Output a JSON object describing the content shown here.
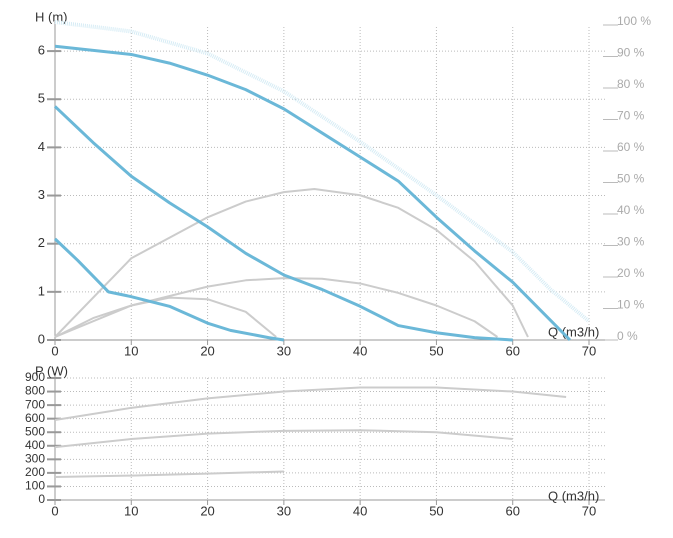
{
  "chart_data": [
    {
      "type": "line",
      "y_label": "H (m)",
      "x_label": "Q (m3/h)",
      "xlim": [
        0,
        70
      ],
      "xticks": [
        0,
        10,
        20,
        30,
        40,
        50,
        60,
        70
      ],
      "ylim": [
        0,
        6.5
      ],
      "yticks": [
        0,
        1,
        2,
        3,
        4,
        5,
        6
      ],
      "y2lim": [
        0,
        100
      ],
      "y2ticks": [
        {
          "value": 0,
          "label": "0 %"
        },
        {
          "value": 10,
          "label": "10 %"
        },
        {
          "value": 20,
          "label": "20 %"
        },
        {
          "value": 30,
          "label": "30 %"
        },
        {
          "value": 40,
          "label": "40 %"
        },
        {
          "value": 50,
          "label": "50 %"
        },
        {
          "value": 60,
          "label": "60 %"
        },
        {
          "value": 70,
          "label": "70 %"
        },
        {
          "value": 80,
          "label": "80 %"
        },
        {
          "value": 90,
          "label": "90 %"
        },
        {
          "value": 100,
          "label": "100 %"
        }
      ],
      "grid": true,
      "series": [
        {
          "color": "#d6ecf5",
          "dash": "dotted",
          "axis": "y2",
          "x": [
            0,
            10,
            20,
            30,
            40,
            50,
            60,
            65,
            70
          ],
          "values": [
            100,
            97,
            90,
            78,
            62,
            45,
            27,
            15,
            5
          ]
        },
        {
          "color": "#cccccc",
          "axis": "y2",
          "x": [
            0,
            10,
            20,
            25,
            30,
            34,
            40,
            45,
            50,
            55,
            60,
            62
          ],
          "values": [
            0,
            25,
            38,
            43,
            46,
            47,
            45,
            41,
            34,
            24,
            10,
            0
          ]
        },
        {
          "color": "#cccccc",
          "axis": "y2",
          "x": [
            0,
            10,
            20,
            25,
            30,
            35,
            40,
            45,
            50,
            55,
            58
          ],
          "values": [
            0,
            10,
            16,
            18,
            18.7,
            18.5,
            17,
            14,
            10,
            5,
            0
          ]
        },
        {
          "color": "#cccccc",
          "axis": "y2",
          "x": [
            0,
            5,
            10,
            15,
            20,
            25,
            29
          ],
          "values": [
            0,
            6,
            10,
            12.5,
            12,
            8,
            0
          ]
        },
        {
          "color": "#6bb8d8",
          "x": [
            0,
            10,
            15,
            20,
            25,
            30,
            35,
            40,
            45,
            50,
            55,
            60,
            65,
            67.5
          ],
          "values": [
            6.1,
            5.93,
            5.75,
            5.5,
            5.2,
            4.8,
            4.3,
            3.8,
            3.3,
            2.55,
            1.85,
            1.2,
            0.4,
            0
          ]
        },
        {
          "color": "#6bb8d8",
          "x": [
            0,
            5,
            10,
            15,
            20,
            25,
            30,
            35,
            40,
            45,
            50,
            55,
            60
          ],
          "values": [
            4.85,
            4.1,
            3.4,
            2.85,
            2.35,
            1.8,
            1.35,
            1.05,
            0.7,
            0.3,
            0.15,
            0.05,
            0
          ]
        },
        {
          "color": "#6bb8d8",
          "x": [
            0,
            3,
            7,
            10,
            15,
            20,
            23,
            28,
            30
          ],
          "values": [
            2.1,
            1.65,
            1.0,
            0.9,
            0.7,
            0.35,
            0.2,
            0.05,
            0
          ]
        }
      ]
    },
    {
      "type": "line",
      "y_label": "P (W)",
      "x_label": "Q (m3/h)",
      "xlim": [
        0,
        70
      ],
      "xticks": [
        0,
        10,
        20,
        30,
        40,
        50,
        60,
        70
      ],
      "ylim": [
        0,
        900
      ],
      "yticks": [
        0,
        100,
        200,
        300,
        400,
        500,
        600,
        700,
        800,
        900
      ],
      "grid": true,
      "series": [
        {
          "color": "#cccccc",
          "x": [
            0,
            10,
            20,
            30,
            40,
            50,
            60,
            67
          ],
          "values": [
            590,
            680,
            750,
            800,
            830,
            830,
            800,
            760
          ]
        },
        {
          "color": "#cccccc",
          "x": [
            0,
            10,
            20,
            30,
            40,
            50,
            60
          ],
          "values": [
            390,
            450,
            490,
            510,
            515,
            500,
            450
          ]
        },
        {
          "color": "#cccccc",
          "x": [
            0,
            10,
            20,
            30
          ],
          "values": [
            170,
            180,
            195,
            210
          ]
        }
      ]
    }
  ]
}
